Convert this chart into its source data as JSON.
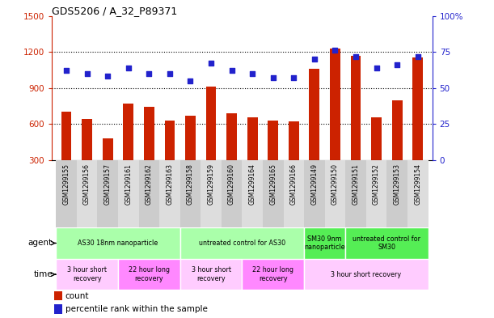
{
  "title": "GDS5206 / A_32_P89371",
  "samples": [
    "GSM1299155",
    "GSM1299156",
    "GSM1299157",
    "GSM1299161",
    "GSM1299162",
    "GSM1299163",
    "GSM1299158",
    "GSM1299159",
    "GSM1299160",
    "GSM1299164",
    "GSM1299165",
    "GSM1299166",
    "GSM1299149",
    "GSM1299150",
    "GSM1299151",
    "GSM1299152",
    "GSM1299153",
    "GSM1299154"
  ],
  "counts": [
    700,
    645,
    480,
    770,
    740,
    630,
    668,
    910,
    692,
    658,
    628,
    622,
    1060,
    1230,
    1170,
    658,
    800,
    1155
  ],
  "percentiles": [
    62,
    60,
    58,
    64,
    60,
    60,
    55,
    67,
    62,
    60,
    57,
    57,
    70,
    76,
    72,
    64,
    66,
    72
  ],
  "ylim_left": [
    300,
    1500
  ],
  "ylim_right": [
    0,
    100
  ],
  "yticks_left": [
    300,
    600,
    900,
    1200,
    1500
  ],
  "yticks_right": [
    0,
    25,
    50,
    75,
    100
  ],
  "agent_groups": [
    {
      "label": "AS30 18nm nanoparticle",
      "start": 0,
      "end": 6,
      "color": "#aaffaa"
    },
    {
      "label": "untreated control for AS30",
      "start": 6,
      "end": 12,
      "color": "#aaffaa"
    },
    {
      "label": "SM30 9nm\nnanoparticle",
      "start": 12,
      "end": 14,
      "color": "#55ee55"
    },
    {
      "label": "untreated control for\nSM30",
      "start": 14,
      "end": 18,
      "color": "#55ee55"
    }
  ],
  "time_groups": [
    {
      "label": "3 hour short\nrecovery",
      "start": 0,
      "end": 3,
      "color": "#ffccff"
    },
    {
      "label": "22 hour long\nrecovery",
      "start": 3,
      "end": 6,
      "color": "#ff88ff"
    },
    {
      "label": "3 hour short\nrecovery",
      "start": 6,
      "end": 9,
      "color": "#ffccff"
    },
    {
      "label": "22 hour long\nrecovery",
      "start": 9,
      "end": 12,
      "color": "#ff88ff"
    },
    {
      "label": "3 hour short recovery",
      "start": 12,
      "end": 18,
      "color": "#ffccff"
    }
  ],
  "bar_color": "#cc2200",
  "dot_color": "#2222cc",
  "left_axis_color": "#cc2200",
  "right_axis_color": "#2222cc",
  "label_bg_color": "#cccccc",
  "background_color": "#ffffff"
}
